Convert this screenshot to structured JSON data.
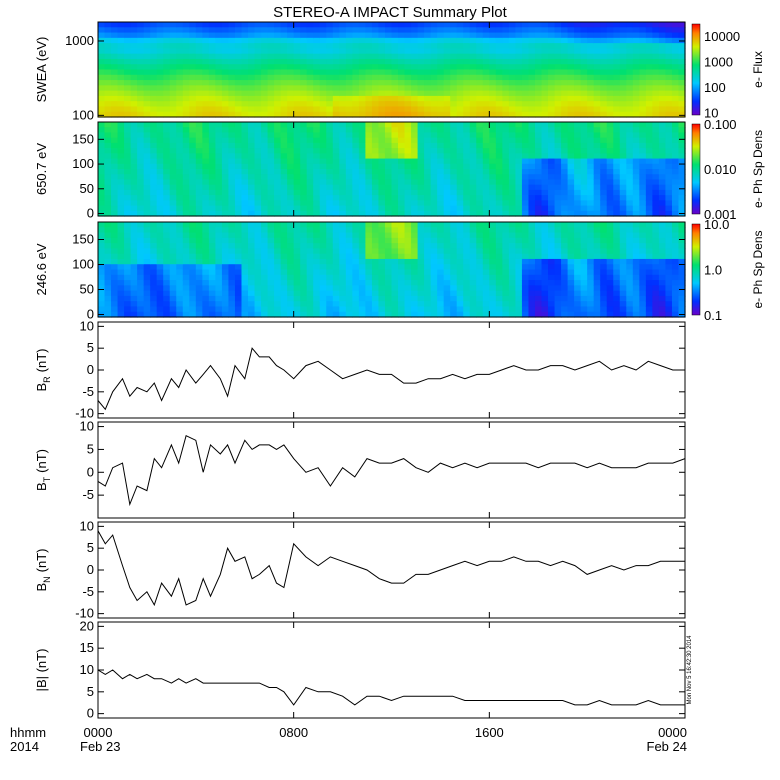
{
  "title": "STEREO-A IMPACT Summary Plot",
  "time_axis": {
    "row1_labels": [
      "hhmm",
      "0000",
      "0800",
      "1600",
      "0000"
    ],
    "row2_labels": [
      "2014",
      "Feb 23",
      "Feb 24"
    ],
    "tick_hours": [
      0,
      8,
      16,
      24
    ]
  },
  "timestamp_text": "Mon Nov 5 16:42:30 2014",
  "chart_data": [
    {
      "type": "heatmap",
      "ylabel": "SWEA (eV)",
      "yscale": "log",
      "ylim": [
        95,
        1800
      ],
      "yticks": [
        "1000",
        "100"
      ],
      "yticks_values": [
        1000,
        100
      ],
      "colorbar": {
        "label": "e- Flux",
        "scale": "log",
        "range": [
          8,
          30000
        ],
        "ticks": [
          "10000",
          "1000",
          "100",
          "10"
        ],
        "tick_values": [
          10000,
          1000,
          100,
          10
        ]
      }
    },
    {
      "type": "heatmap",
      "ylabel": "650.7 eV",
      "ylim": [
        -5,
        185
      ],
      "yticks": [
        "150",
        "100",
        "50",
        "0"
      ],
      "yticks_values": [
        150,
        100,
        50,
        0
      ],
      "colorbar": {
        "label": "e- Ph Sp Dens",
        "scale": "log",
        "range": [
          0.001,
          0.1
        ],
        "ticks": [
          "0.100",
          "0.010",
          "0.001"
        ],
        "tick_values": [
          0.1,
          0.01,
          0.001
        ]
      }
    },
    {
      "type": "heatmap",
      "ylabel": "246.6 eV",
      "ylim": [
        -5,
        185
      ],
      "yticks": [
        "150",
        "100",
        "50",
        "0"
      ],
      "yticks_values": [
        150,
        100,
        50,
        0
      ],
      "colorbar": {
        "label": "e- Ph Sp Dens",
        "scale": "log",
        "range": [
          0.1,
          10
        ],
        "ticks": [
          "10.0",
          "1.0",
          "0.1"
        ],
        "tick_values": [
          10,
          1,
          0.1
        ]
      }
    },
    {
      "type": "line",
      "ylabel_main": "B",
      "ylabel_sub": "R",
      "ylabel_unit": "(nT)",
      "ylim": [
        -11,
        11
      ],
      "yticks": [
        "10",
        "5",
        "0",
        "-5",
        "-10"
      ],
      "yticks_values": [
        10,
        5,
        0,
        -5,
        -10
      ],
      "x": [
        0,
        0.3,
        0.6,
        1.0,
        1.3,
        1.6,
        2.0,
        2.3,
        2.6,
        3.0,
        3.3,
        3.6,
        4.0,
        4.3,
        4.6,
        5.0,
        5.3,
        5.6,
        6.0,
        6.3,
        6.6,
        7.0,
        7.3,
        7.6,
        8.0,
        8.5,
        9.0,
        9.5,
        10.0,
        10.5,
        11.0,
        11.5,
        12.0,
        12.5,
        13.0,
        13.5,
        14.0,
        14.5,
        15.0,
        15.5,
        16.0,
        16.5,
        17.0,
        17.5,
        18.0,
        18.5,
        19.0,
        19.5,
        20.0,
        20.5,
        21.0,
        21.5,
        22.0,
        22.5,
        23.0,
        23.5,
        24.0
      ],
      "y": [
        -7,
        -9,
        -5,
        -2,
        -6,
        -4,
        -5,
        -3,
        -7,
        -2,
        -4,
        0,
        -3,
        -1,
        1,
        -2,
        -6,
        1,
        -2,
        5,
        3,
        3,
        1,
        0,
        -2,
        1,
        2,
        0,
        -2,
        -1,
        0,
        -1,
        -1,
        -3,
        -3,
        -2,
        -2,
        -1,
        -2,
        -1,
        -1,
        0,
        1,
        0,
        0,
        1,
        1,
        0,
        1,
        2,
        0,
        1,
        0,
        2,
        1,
        0,
        0
      ]
    },
    {
      "type": "line",
      "ylabel_main": "B",
      "ylabel_sub": "T",
      "ylabel_unit": "(nT)",
      "ylim": [
        -10,
        11
      ],
      "yticks": [
        "10",
        "5",
        "0",
        "-5"
      ],
      "yticks_values": [
        10,
        5,
        0,
        -5
      ],
      "x": [
        0,
        0.3,
        0.6,
        1.0,
        1.3,
        1.6,
        2.0,
        2.3,
        2.6,
        3.0,
        3.3,
        3.6,
        4.0,
        4.3,
        4.6,
        5.0,
        5.3,
        5.6,
        6.0,
        6.3,
        6.6,
        7.0,
        7.3,
        7.6,
        8.0,
        8.5,
        9.0,
        9.5,
        10.0,
        10.5,
        11.0,
        11.5,
        12.0,
        12.5,
        13.0,
        13.5,
        14.0,
        14.5,
        15.0,
        15.5,
        16.0,
        16.5,
        17.0,
        17.5,
        18.0,
        18.5,
        19.0,
        19.5,
        20.0,
        20.5,
        21.0,
        21.5,
        22.0,
        22.5,
        23.0,
        23.5,
        24.0
      ],
      "y": [
        -2,
        -3,
        1,
        2,
        -7,
        -3,
        -4,
        3,
        1,
        6,
        2,
        8,
        7,
        0,
        6,
        4,
        6,
        2,
        7,
        5,
        6,
        6,
        5,
        6,
        3,
        0,
        1,
        -3,
        1,
        -1,
        3,
        2,
        2,
        3,
        1,
        0,
        2,
        1,
        2,
        1,
        2,
        2,
        2,
        2,
        1,
        2,
        2,
        2,
        1,
        2,
        1,
        1,
        1,
        2,
        2,
        2,
        3
      ]
    },
    {
      "type": "line",
      "ylabel_main": "B",
      "ylabel_sub": "N",
      "ylabel_unit": "(nT)",
      "ylim": [
        -11,
        11
      ],
      "yticks": [
        "10",
        "5",
        "0",
        "-5",
        "-10"
      ],
      "yticks_values": [
        10,
        5,
        0,
        -5,
        -10
      ],
      "x": [
        0,
        0.3,
        0.6,
        1.0,
        1.3,
        1.6,
        2.0,
        2.3,
        2.6,
        3.0,
        3.3,
        3.6,
        4.0,
        4.3,
        4.6,
        5.0,
        5.3,
        5.6,
        6.0,
        6.3,
        6.6,
        7.0,
        7.3,
        7.6,
        8.0,
        8.5,
        9.0,
        9.5,
        10.0,
        10.5,
        11.0,
        11.5,
        12.0,
        12.5,
        13.0,
        13.5,
        14.0,
        14.5,
        15.0,
        15.5,
        16.0,
        16.5,
        17.0,
        17.5,
        18.0,
        18.5,
        19.0,
        19.5,
        20.0,
        20.5,
        21.0,
        21.5,
        22.0,
        22.5,
        23.0,
        23.5,
        24.0
      ],
      "y": [
        9,
        6,
        8,
        1,
        -4,
        -7,
        -5,
        -8,
        -3,
        -6,
        -2,
        -8,
        -7,
        -2,
        -6,
        -1,
        5,
        2,
        3,
        -2,
        -1,
        1,
        -3,
        -4,
        6,
        3,
        1,
        3,
        2,
        1,
        0,
        -2,
        -3,
        -3,
        -1,
        -1,
        0,
        1,
        2,
        1,
        2,
        2,
        3,
        2,
        2,
        1,
        2,
        1,
        -1,
        0,
        1,
        0,
        1,
        1,
        2,
        2,
        2
      ]
    },
    {
      "type": "line",
      "ylabel": "|B| (nT)",
      "ylim": [
        -1,
        21
      ],
      "yticks": [
        "20",
        "15",
        "10",
        "5",
        "0"
      ],
      "yticks_values": [
        20,
        15,
        10,
        5,
        0
      ],
      "x": [
        0,
        0.3,
        0.6,
        1.0,
        1.3,
        1.6,
        2.0,
        2.3,
        2.6,
        3.0,
        3.3,
        3.6,
        4.0,
        4.3,
        4.6,
        5.0,
        5.3,
        5.6,
        6.0,
        6.3,
        6.6,
        7.0,
        7.3,
        7.6,
        8.0,
        8.5,
        9.0,
        9.5,
        10.0,
        10.5,
        11.0,
        11.5,
        12.0,
        12.5,
        13.0,
        13.5,
        14.0,
        14.5,
        15.0,
        15.5,
        16.0,
        16.5,
        17.0,
        17.5,
        18.0,
        18.5,
        19.0,
        19.5,
        20.0,
        20.5,
        21.0,
        21.5,
        22.0,
        22.5,
        23.0,
        23.5,
        24.0
      ],
      "y": [
        10,
        9,
        10,
        8,
        9,
        8,
        9,
        8,
        8,
        7,
        8,
        7,
        8,
        7,
        7,
        7,
        7,
        7,
        7,
        7,
        7,
        6,
        6,
        5,
        2,
        6,
        5,
        5,
        4,
        2,
        4,
        4,
        3,
        4,
        4,
        4,
        4,
        4,
        3,
        3,
        3,
        3,
        3,
        3,
        3,
        3,
        3,
        2,
        2,
        3,
        2,
        2,
        2,
        3,
        2,
        2,
        2
      ]
    }
  ]
}
